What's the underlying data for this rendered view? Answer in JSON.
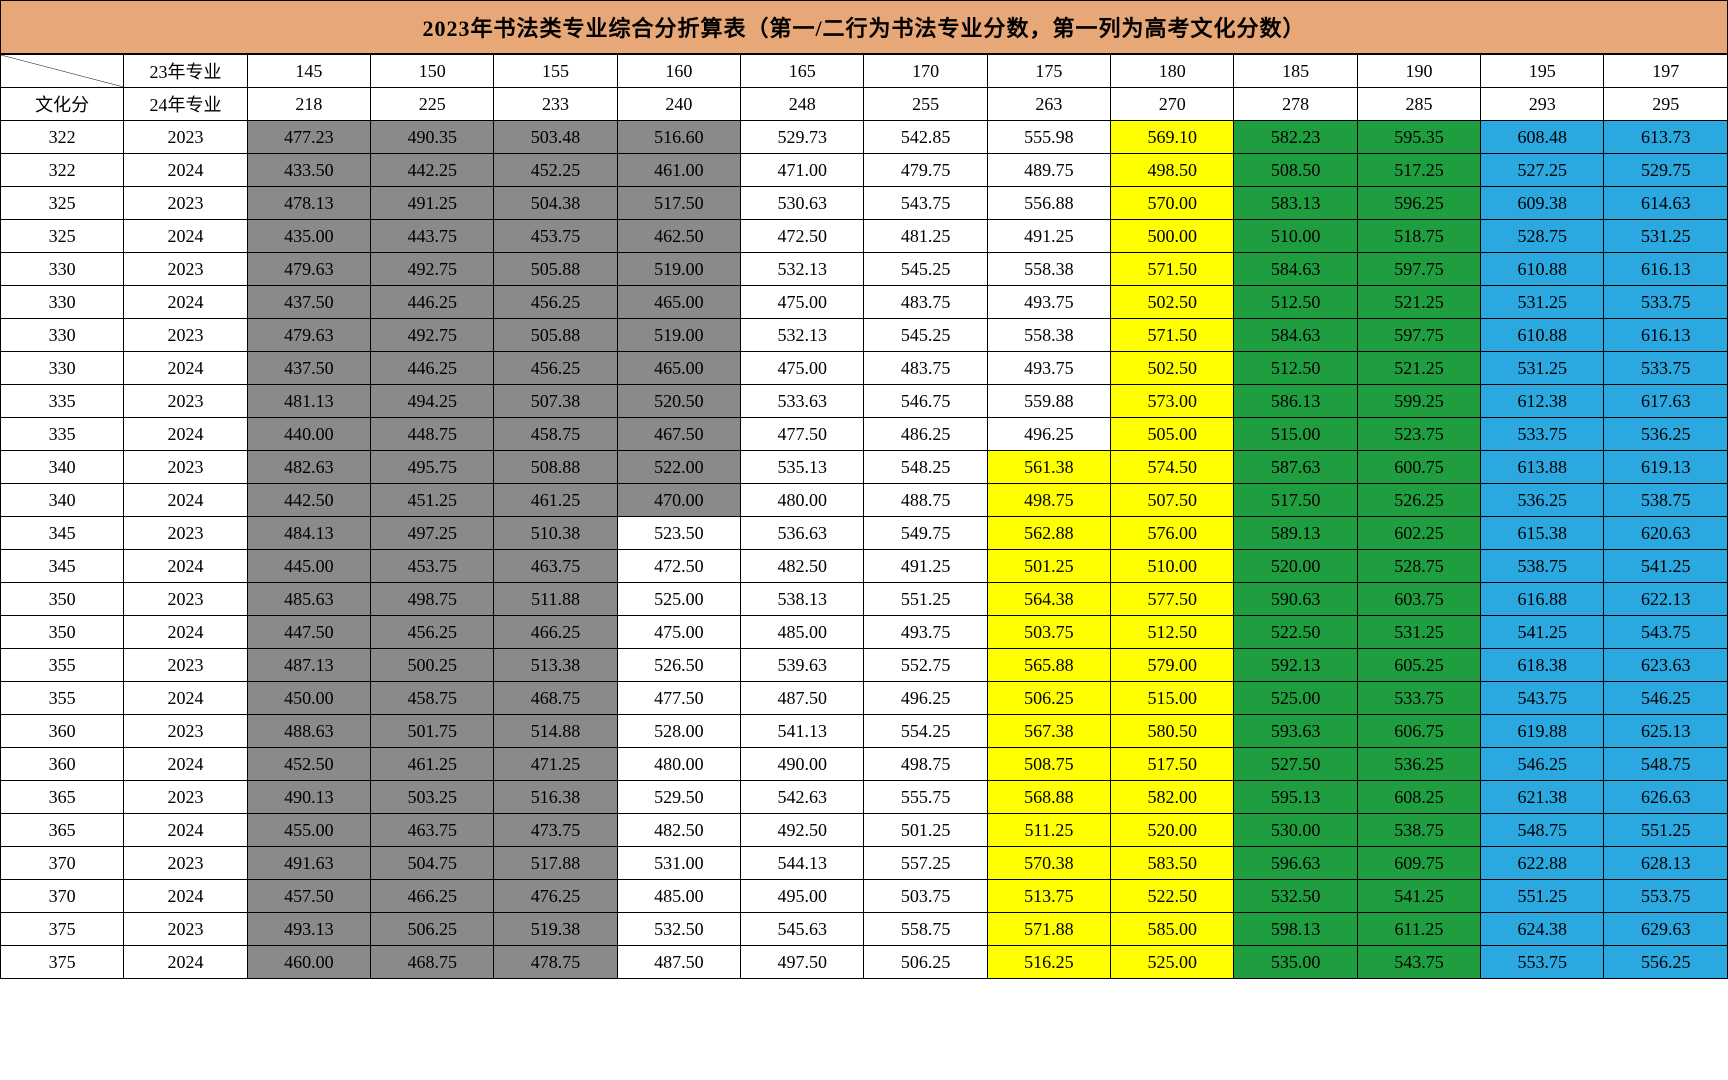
{
  "title": "2023年书法类专业综合分折算表（第一/二行为书法专业分数，第一列为高考文化分数）",
  "headers": {
    "corner_top_label": "23年专业",
    "corner_bottom_left": "文化分",
    "corner_bottom_label": "24年专业",
    "row23": [
      "145",
      "150",
      "155",
      "160",
      "165",
      "170",
      "175",
      "180",
      "185",
      "190",
      "195",
      "197"
    ],
    "row24": [
      "218",
      "225",
      "233",
      "240",
      "248",
      "255",
      "263",
      "270",
      "278",
      "285",
      "293",
      "295"
    ]
  },
  "colors": {
    "gray": "#8a8a8a",
    "white": "#ffffff",
    "yellow": "#ffff00",
    "green": "#1f9e3f",
    "blue": "#2aa8df",
    "title_bg": "#e8a776"
  },
  "color_map_rows": [
    [
      "gray",
      "gray",
      "gray",
      "gray",
      "white",
      "white",
      "white",
      "yellow",
      "green",
      "green",
      "blue",
      "blue"
    ],
    [
      "gray",
      "gray",
      "gray",
      "gray",
      "white",
      "white",
      "white",
      "yellow",
      "green",
      "green",
      "blue",
      "blue"
    ],
    [
      "gray",
      "gray",
      "gray",
      "gray",
      "white",
      "white",
      "white",
      "yellow",
      "green",
      "green",
      "blue",
      "blue"
    ],
    [
      "gray",
      "gray",
      "gray",
      "gray",
      "white",
      "white",
      "white",
      "yellow",
      "green",
      "green",
      "blue",
      "blue"
    ],
    [
      "gray",
      "gray",
      "gray",
      "gray",
      "white",
      "white",
      "white",
      "yellow",
      "green",
      "green",
      "blue",
      "blue"
    ],
    [
      "gray",
      "gray",
      "gray",
      "gray",
      "white",
      "white",
      "white",
      "yellow",
      "green",
      "green",
      "blue",
      "blue"
    ],
    [
      "gray",
      "gray",
      "gray",
      "gray",
      "white",
      "white",
      "white",
      "yellow",
      "green",
      "green",
      "blue",
      "blue"
    ],
    [
      "gray",
      "gray",
      "gray",
      "gray",
      "white",
      "white",
      "white",
      "yellow",
      "green",
      "green",
      "blue",
      "blue"
    ],
    [
      "gray",
      "gray",
      "gray",
      "gray",
      "white",
      "white",
      "white",
      "yellow",
      "green",
      "green",
      "blue",
      "blue"
    ],
    [
      "gray",
      "gray",
      "gray",
      "gray",
      "white",
      "white",
      "white",
      "yellow",
      "green",
      "green",
      "blue",
      "blue"
    ],
    [
      "gray",
      "gray",
      "gray",
      "gray",
      "white",
      "white",
      "yellow",
      "yellow",
      "green",
      "green",
      "blue",
      "blue"
    ],
    [
      "gray",
      "gray",
      "gray",
      "gray",
      "white",
      "white",
      "yellow",
      "yellow",
      "green",
      "green",
      "blue",
      "blue"
    ],
    [
      "gray",
      "gray",
      "gray",
      "white",
      "white",
      "white",
      "yellow",
      "yellow",
      "green",
      "green",
      "blue",
      "blue"
    ],
    [
      "gray",
      "gray",
      "gray",
      "white",
      "white",
      "white",
      "yellow",
      "yellow",
      "green",
      "green",
      "blue",
      "blue"
    ],
    [
      "gray",
      "gray",
      "gray",
      "white",
      "white",
      "white",
      "yellow",
      "yellow",
      "green",
      "green",
      "blue",
      "blue"
    ],
    [
      "gray",
      "gray",
      "gray",
      "white",
      "white",
      "white",
      "yellow",
      "yellow",
      "green",
      "green",
      "blue",
      "blue"
    ],
    [
      "gray",
      "gray",
      "gray",
      "white",
      "white",
      "white",
      "yellow",
      "yellow",
      "green",
      "green",
      "blue",
      "blue"
    ],
    [
      "gray",
      "gray",
      "gray",
      "white",
      "white",
      "white",
      "yellow",
      "yellow",
      "green",
      "green",
      "blue",
      "blue"
    ],
    [
      "gray",
      "gray",
      "gray",
      "white",
      "white",
      "white",
      "yellow",
      "yellow",
      "green",
      "green",
      "blue",
      "blue"
    ],
    [
      "gray",
      "gray",
      "gray",
      "white",
      "white",
      "white",
      "yellow",
      "yellow",
      "green",
      "green",
      "blue",
      "blue"
    ],
    [
      "gray",
      "gray",
      "gray",
      "white",
      "white",
      "white",
      "yellow",
      "yellow",
      "green",
      "green",
      "blue",
      "blue"
    ],
    [
      "gray",
      "gray",
      "gray",
      "white",
      "white",
      "white",
      "yellow",
      "yellow",
      "green",
      "green",
      "blue",
      "blue"
    ],
    [
      "gray",
      "gray",
      "gray",
      "white",
      "white",
      "white",
      "yellow",
      "yellow",
      "green",
      "green",
      "blue",
      "blue"
    ],
    [
      "gray",
      "gray",
      "gray",
      "white",
      "white",
      "white",
      "yellow",
      "yellow",
      "green",
      "green",
      "blue",
      "blue"
    ],
    [
      "gray",
      "gray",
      "gray",
      "white",
      "white",
      "white",
      "yellow",
      "yellow",
      "green",
      "green",
      "blue",
      "blue"
    ],
    [
      "gray",
      "gray",
      "gray",
      "white",
      "white",
      "white",
      "yellow",
      "yellow",
      "green",
      "green",
      "blue",
      "blue"
    ]
  ],
  "rows": [
    {
      "wh": "322",
      "yr": "2023",
      "v": [
        "477.23",
        "490.35",
        "503.48",
        "516.60",
        "529.73",
        "542.85",
        "555.98",
        "569.10",
        "582.23",
        "595.35",
        "608.48",
        "613.73"
      ]
    },
    {
      "wh": "322",
      "yr": "2024",
      "v": [
        "433.50",
        "442.25",
        "452.25",
        "461.00",
        "471.00",
        "479.75",
        "489.75",
        "498.50",
        "508.50",
        "517.25",
        "527.25",
        "529.75"
      ]
    },
    {
      "wh": "325",
      "yr": "2023",
      "v": [
        "478.13",
        "491.25",
        "504.38",
        "517.50",
        "530.63",
        "543.75",
        "556.88",
        "570.00",
        "583.13",
        "596.25",
        "609.38",
        "614.63"
      ]
    },
    {
      "wh": "325",
      "yr": "2024",
      "v": [
        "435.00",
        "443.75",
        "453.75",
        "462.50",
        "472.50",
        "481.25",
        "491.25",
        "500.00",
        "510.00",
        "518.75",
        "528.75",
        "531.25"
      ]
    },
    {
      "wh": "330",
      "yr": "2023",
      "v": [
        "479.63",
        "492.75",
        "505.88",
        "519.00",
        "532.13",
        "545.25",
        "558.38",
        "571.50",
        "584.63",
        "597.75",
        "610.88",
        "616.13"
      ]
    },
    {
      "wh": "330",
      "yr": "2024",
      "v": [
        "437.50",
        "446.25",
        "456.25",
        "465.00",
        "475.00",
        "483.75",
        "493.75",
        "502.50",
        "512.50",
        "521.25",
        "531.25",
        "533.75"
      ]
    },
    {
      "wh": "330",
      "yr": "2023",
      "v": [
        "479.63",
        "492.75",
        "505.88",
        "519.00",
        "532.13",
        "545.25",
        "558.38",
        "571.50",
        "584.63",
        "597.75",
        "610.88",
        "616.13"
      ]
    },
    {
      "wh": "330",
      "yr": "2024",
      "v": [
        "437.50",
        "446.25",
        "456.25",
        "465.00",
        "475.00",
        "483.75",
        "493.75",
        "502.50",
        "512.50",
        "521.25",
        "531.25",
        "533.75"
      ]
    },
    {
      "wh": "335",
      "yr": "2023",
      "v": [
        "481.13",
        "494.25",
        "507.38",
        "520.50",
        "533.63",
        "546.75",
        "559.88",
        "573.00",
        "586.13",
        "599.25",
        "612.38",
        "617.63"
      ]
    },
    {
      "wh": "335",
      "yr": "2024",
      "v": [
        "440.00",
        "448.75",
        "458.75",
        "467.50",
        "477.50",
        "486.25",
        "496.25",
        "505.00",
        "515.00",
        "523.75",
        "533.75",
        "536.25"
      ]
    },
    {
      "wh": "340",
      "yr": "2023",
      "v": [
        "482.63",
        "495.75",
        "508.88",
        "522.00",
        "535.13",
        "548.25",
        "561.38",
        "574.50",
        "587.63",
        "600.75",
        "613.88",
        "619.13"
      ]
    },
    {
      "wh": "340",
      "yr": "2024",
      "v": [
        "442.50",
        "451.25",
        "461.25",
        "470.00",
        "480.00",
        "488.75",
        "498.75",
        "507.50",
        "517.50",
        "526.25",
        "536.25",
        "538.75"
      ]
    },
    {
      "wh": "345",
      "yr": "2023",
      "v": [
        "484.13",
        "497.25",
        "510.38",
        "523.50",
        "536.63",
        "549.75",
        "562.88",
        "576.00",
        "589.13",
        "602.25",
        "615.38",
        "620.63"
      ]
    },
    {
      "wh": "345",
      "yr": "2024",
      "v": [
        "445.00",
        "453.75",
        "463.75",
        "472.50",
        "482.50",
        "491.25",
        "501.25",
        "510.00",
        "520.00",
        "528.75",
        "538.75",
        "541.25"
      ]
    },
    {
      "wh": "350",
      "yr": "2023",
      "v": [
        "485.63",
        "498.75",
        "511.88",
        "525.00",
        "538.13",
        "551.25",
        "564.38",
        "577.50",
        "590.63",
        "603.75",
        "616.88",
        "622.13"
      ]
    },
    {
      "wh": "350",
      "yr": "2024",
      "v": [
        "447.50",
        "456.25",
        "466.25",
        "475.00",
        "485.00",
        "493.75",
        "503.75",
        "512.50",
        "522.50",
        "531.25",
        "541.25",
        "543.75"
      ]
    },
    {
      "wh": "355",
      "yr": "2023",
      "v": [
        "487.13",
        "500.25",
        "513.38",
        "526.50",
        "539.63",
        "552.75",
        "565.88",
        "579.00",
        "592.13",
        "605.25",
        "618.38",
        "623.63"
      ]
    },
    {
      "wh": "355",
      "yr": "2024",
      "v": [
        "450.00",
        "458.75",
        "468.75",
        "477.50",
        "487.50",
        "496.25",
        "506.25",
        "515.00",
        "525.00",
        "533.75",
        "543.75",
        "546.25"
      ]
    },
    {
      "wh": "360",
      "yr": "2023",
      "v": [
        "488.63",
        "501.75",
        "514.88",
        "528.00",
        "541.13",
        "554.25",
        "567.38",
        "580.50",
        "593.63",
        "606.75",
        "619.88",
        "625.13"
      ]
    },
    {
      "wh": "360",
      "yr": "2024",
      "v": [
        "452.50",
        "461.25",
        "471.25",
        "480.00",
        "490.00",
        "498.75",
        "508.75",
        "517.50",
        "527.50",
        "536.25",
        "546.25",
        "548.75"
      ]
    },
    {
      "wh": "365",
      "yr": "2023",
      "v": [
        "490.13",
        "503.25",
        "516.38",
        "529.50",
        "542.63",
        "555.75",
        "568.88",
        "582.00",
        "595.13",
        "608.25",
        "621.38",
        "626.63"
      ]
    },
    {
      "wh": "365",
      "yr": "2024",
      "v": [
        "455.00",
        "463.75",
        "473.75",
        "482.50",
        "492.50",
        "501.25",
        "511.25",
        "520.00",
        "530.00",
        "538.75",
        "548.75",
        "551.25"
      ]
    },
    {
      "wh": "370",
      "yr": "2023",
      "v": [
        "491.63",
        "504.75",
        "517.88",
        "531.00",
        "544.13",
        "557.25",
        "570.38",
        "583.50",
        "596.63",
        "609.75",
        "622.88",
        "628.13"
      ]
    },
    {
      "wh": "370",
      "yr": "2024",
      "v": [
        "457.50",
        "466.25",
        "476.25",
        "485.00",
        "495.00",
        "503.75",
        "513.75",
        "522.50",
        "532.50",
        "541.25",
        "551.25",
        "553.75"
      ]
    },
    {
      "wh": "375",
      "yr": "2023",
      "v": [
        "493.13",
        "506.25",
        "519.38",
        "532.50",
        "545.63",
        "558.75",
        "571.88",
        "585.00",
        "598.13",
        "611.25",
        "624.38",
        "629.63"
      ]
    },
    {
      "wh": "375",
      "yr": "2024",
      "v": [
        "460.00",
        "468.75",
        "478.75",
        "487.50",
        "497.50",
        "506.25",
        "516.25",
        "525.00",
        "535.00",
        "543.75",
        "553.75",
        "556.25"
      ]
    }
  ]
}
